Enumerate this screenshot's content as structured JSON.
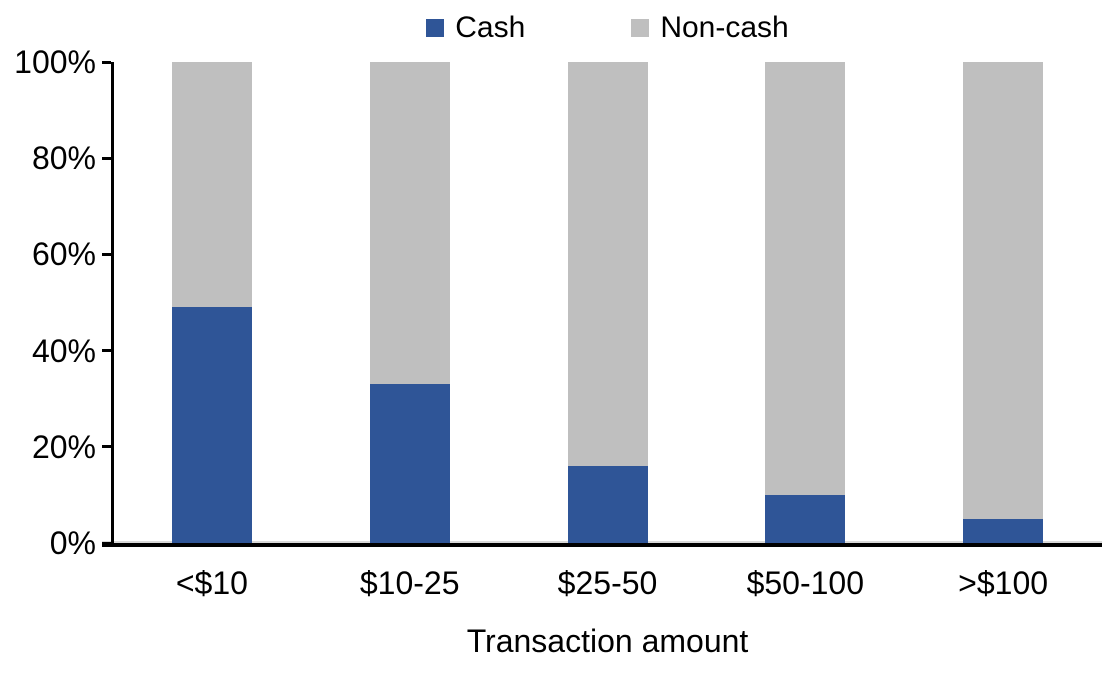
{
  "chart_data": {
    "type": "bar",
    "subtype": "stacked-100-percent",
    "title": "",
    "xlabel": "Transaction amount",
    "ylabel": "",
    "categories": [
      "<$10",
      "$10-25",
      "$25-50",
      "$50-100",
      ">$100"
    ],
    "series": [
      {
        "name": "Cash",
        "color": "#2F5597",
        "values": [
          49,
          33,
          16,
          10,
          5
        ]
      },
      {
        "name": "Non-cash",
        "color": "#BFBFBF",
        "values": [
          51,
          67,
          84,
          90,
          95
        ]
      }
    ],
    "ylim": [
      0,
      100
    ],
    "y_ticks": [
      "0%",
      "20%",
      "40%",
      "60%",
      "80%",
      "100%"
    ],
    "grid": false,
    "legend_position": "top-center",
    "axis_color": "#000000",
    "background_color": "#FFFFFF"
  }
}
